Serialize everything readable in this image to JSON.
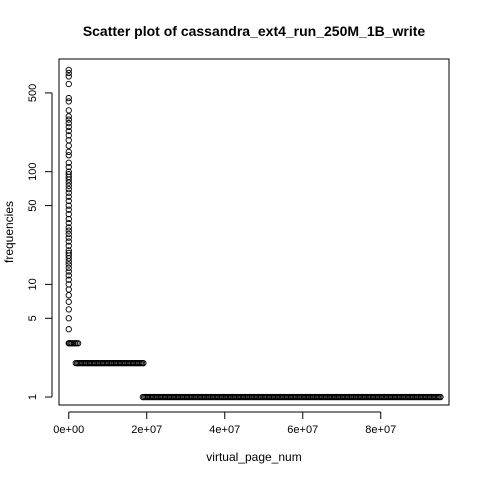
{
  "chart_data": {
    "type": "scatter",
    "title": "Scatter plot of cassandra_ext4_run_250M_1B_write",
    "xlabel": "virtual_page_num",
    "ylabel": "frequencies",
    "x_scale": "linear",
    "y_scale": "log",
    "xlim": [
      -2500000,
      97500000
    ],
    "ylim": [
      0.85,
      1000
    ],
    "x_ticks": [
      0,
      20000000,
      40000000,
      60000000,
      80000000
    ],
    "x_tick_labels": [
      "0e+00",
      "2e+07",
      "4e+07",
      "6e+07",
      "8e+07"
    ],
    "y_ticks": [
      1,
      5,
      10,
      50,
      100,
      500
    ],
    "y_tick_labels": [
      "1",
      "5",
      "10",
      "50",
      "100",
      "500"
    ],
    "marker": "open-circle",
    "grid": false,
    "points": [
      {
        "x": 0,
        "y": 800
      },
      {
        "x": 0,
        "y": 750
      },
      {
        "x": 0,
        "y": 700
      },
      {
        "x": 0,
        "y": 600
      },
      {
        "x": 0,
        "y": 450
      },
      {
        "x": 0,
        "y": 420
      },
      {
        "x": 0,
        "y": 350
      },
      {
        "x": 0,
        "y": 310
      },
      {
        "x": 0,
        "y": 290
      },
      {
        "x": 0,
        "y": 270
      },
      {
        "x": 0,
        "y": 250
      },
      {
        "x": 0,
        "y": 230
      },
      {
        "x": 0,
        "y": 210
      },
      {
        "x": 0,
        "y": 190
      },
      {
        "x": 0,
        "y": 170
      },
      {
        "x": 0,
        "y": 150
      },
      {
        "x": 0,
        "y": 140
      },
      {
        "x": 0,
        "y": 120
      },
      {
        "x": 0,
        "y": 110
      },
      {
        "x": 0,
        "y": 100
      },
      {
        "x": 0,
        "y": 95
      },
      {
        "x": 0,
        "y": 90
      },
      {
        "x": 0,
        "y": 85
      },
      {
        "x": 0,
        "y": 80
      },
      {
        "x": 0,
        "y": 75
      },
      {
        "x": 0,
        "y": 70
      },
      {
        "x": 0,
        "y": 65
      },
      {
        "x": 0,
        "y": 60
      },
      {
        "x": 0,
        "y": 55
      },
      {
        "x": 0,
        "y": 50
      },
      {
        "x": 0,
        "y": 46
      },
      {
        "x": 0,
        "y": 42
      },
      {
        "x": 0,
        "y": 38
      },
      {
        "x": 0,
        "y": 35
      },
      {
        "x": 0,
        "y": 32
      },
      {
        "x": 0,
        "y": 30
      },
      {
        "x": 0,
        "y": 28
      },
      {
        "x": 0,
        "y": 26
      },
      {
        "x": 0,
        "y": 24
      },
      {
        "x": 0,
        "y": 22
      },
      {
        "x": 0,
        "y": 20
      },
      {
        "x": 0,
        "y": 19
      },
      {
        "x": 0,
        "y": 18
      },
      {
        "x": 0,
        "y": 17
      },
      {
        "x": 0,
        "y": 16
      },
      {
        "x": 0,
        "y": 15
      },
      {
        "x": 0,
        "y": 14
      },
      {
        "x": 0,
        "y": 13
      },
      {
        "x": 0,
        "y": 12
      },
      {
        "x": 0,
        "y": 11
      },
      {
        "x": 0,
        "y": 10
      },
      {
        "x": 0,
        "y": 9
      },
      {
        "x": 0,
        "y": 8
      },
      {
        "x": 0,
        "y": 7
      },
      {
        "x": 0,
        "y": 6
      },
      {
        "x": 0,
        "y": 5
      },
      {
        "x": 0,
        "y": 4
      },
      {
        "x": 0,
        "y": 3
      },
      {
        "x": 200000,
        "y": 3
      },
      {
        "x": 500000,
        "y": 3
      },
      {
        "x": 800000,
        "y": 3
      },
      {
        "x": 1200000,
        "y": 3
      },
      {
        "x": 1600000,
        "y": 3
      },
      {
        "x": 2000000,
        "y": 3
      },
      {
        "x": 2400000,
        "y": 3
      }
    ],
    "runs": [
      {
        "y": 2,
        "x_start": 1800000,
        "x_end": 19200000
      },
      {
        "y": 1,
        "x_start": 19000000,
        "x_end": 95500000
      }
    ]
  }
}
